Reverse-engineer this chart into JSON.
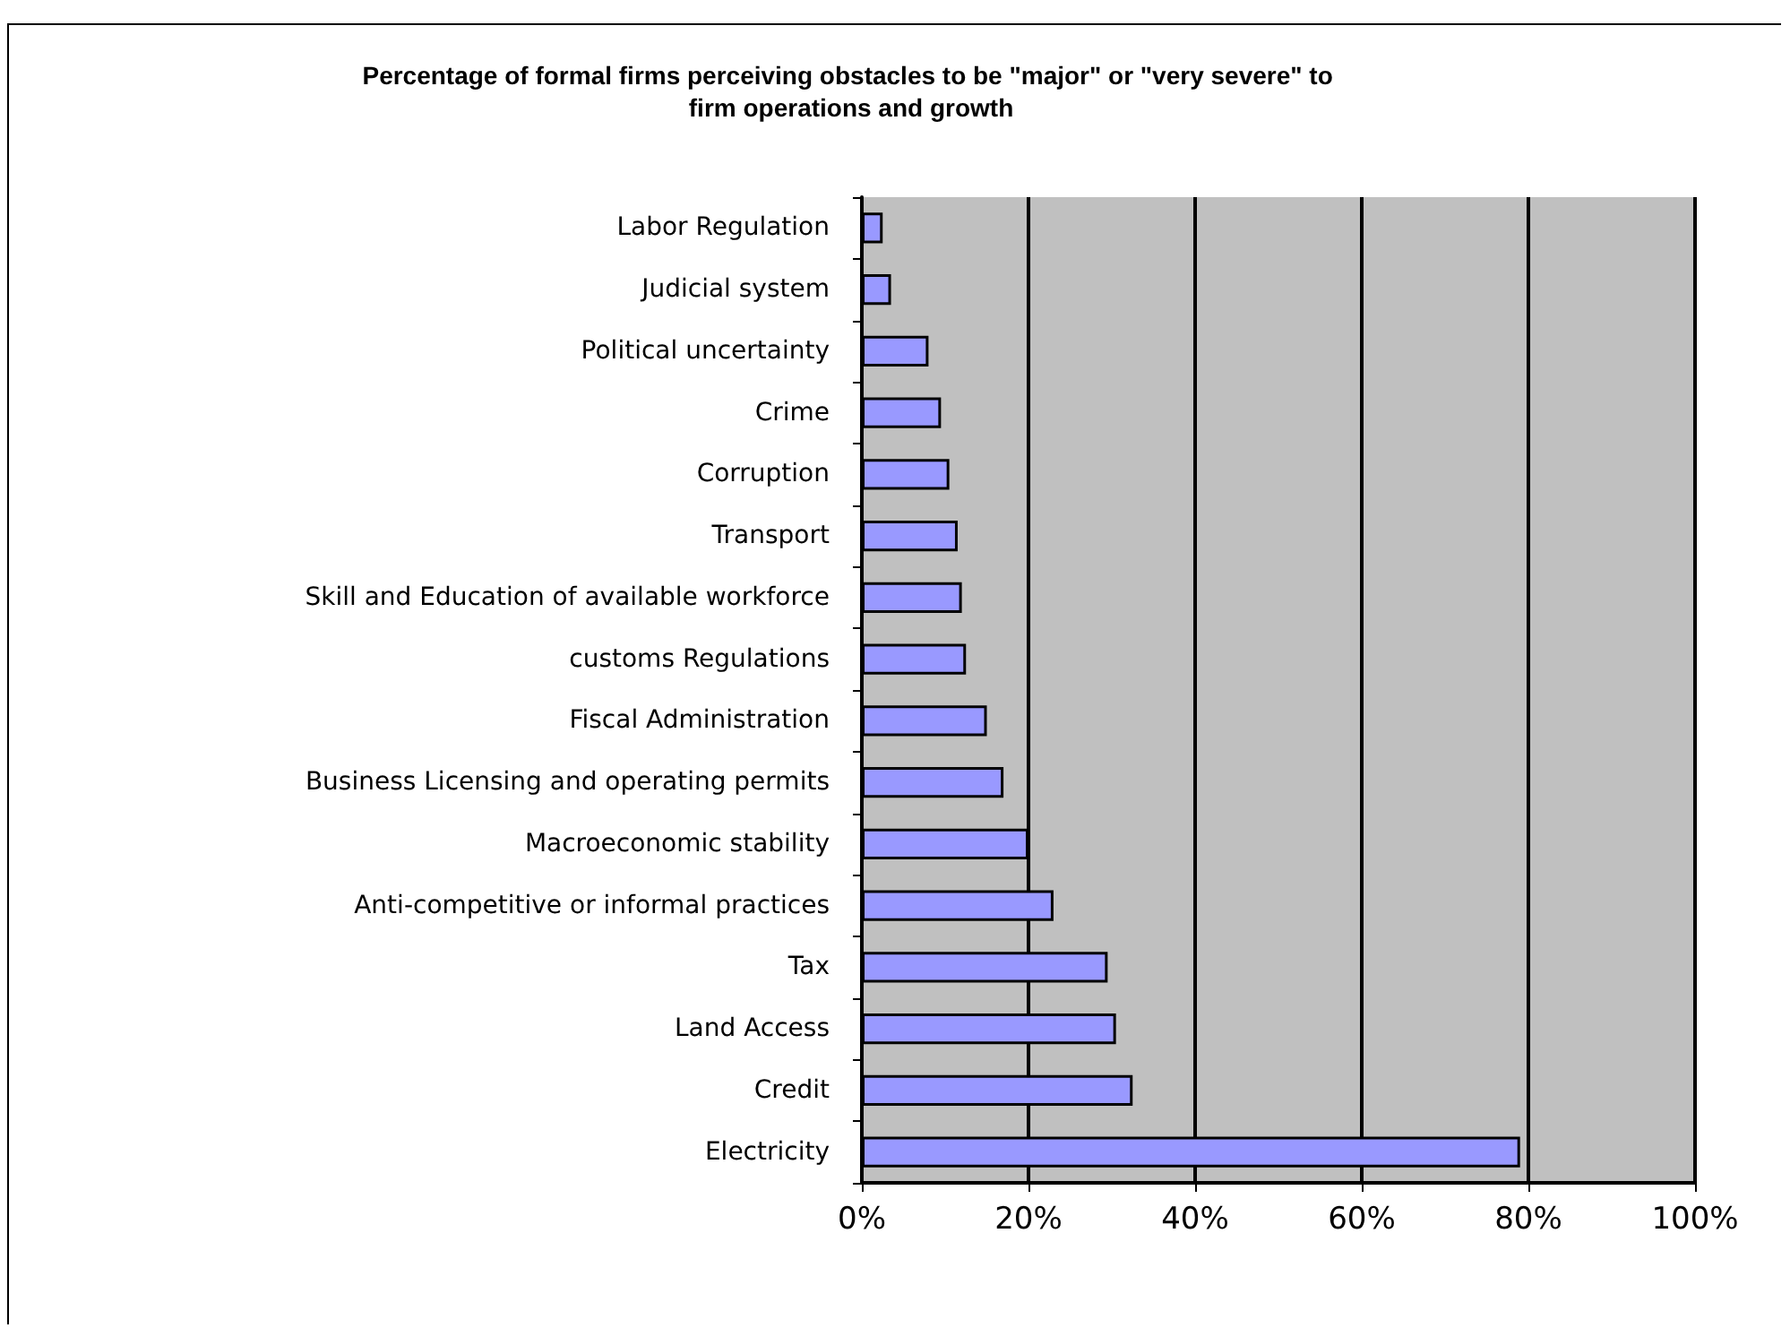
{
  "chart_data": {
    "type": "bar",
    "orientation": "horizontal",
    "title": "Percentage of formal firms perceiving obstacles to be \"major\" or \"very severe\" to firm operations and growth",
    "categories": [
      "Labor Regulation",
      "Judicial system",
      "Political uncertainty",
      "Crime",
      "Corruption",
      "Transport",
      "Skill and Education of available workforce",
      "customs Regulations",
      "Fiscal Administration",
      "Business Licensing and operating permits",
      "Macroeconomic stability",
      "Anti-competitive or informal practices",
      "Tax",
      "Land Access",
      "Credit",
      "Electricity"
    ],
    "values": [
      2.5,
      3.5,
      8,
      9.5,
      10.5,
      11.5,
      12,
      12.5,
      15,
      17,
      20,
      23,
      29.5,
      30.5,
      32.5,
      79
    ],
    "color": "#9999ff",
    "xlim": [
      0,
      100
    ],
    "xticks": [
      {
        "value": 0,
        "label": "0%"
      },
      {
        "value": 20,
        "label": "20%"
      },
      {
        "value": 40,
        "label": "40%"
      },
      {
        "value": 60,
        "label": "60%"
      },
      {
        "value": 80,
        "label": "80%"
      },
      {
        "value": 100,
        "label": "100%"
      }
    ],
    "grid": "x"
  }
}
